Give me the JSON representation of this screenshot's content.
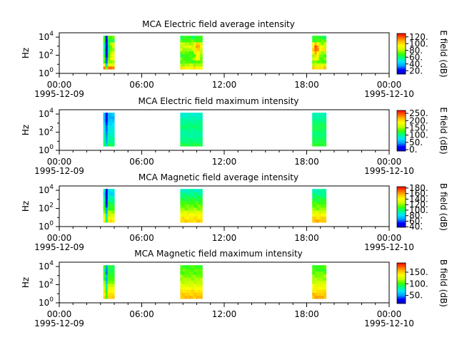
{
  "figure": {
    "width": 640,
    "height": 480,
    "background": "#ffffff",
    "colormap": [
      "#0000c8",
      "#0000ff",
      "#00a0ff",
      "#00e5ff",
      "#00ff80",
      "#40ff00",
      "#c8ff00",
      "#ffff00",
      "#ffc000",
      "#ff6000",
      "#ff0000"
    ]
  },
  "chart_data": [
    {
      "type": "heatmap",
      "title": "MCA  Electric field average intensity",
      "ylabel": "Hz",
      "y_scale": "log",
      "ylim": [
        1,
        30000
      ],
      "y_ticks": [
        {
          "exp": "0",
          "value": 1
        },
        {
          "exp": "2",
          "value": 100
        },
        {
          "exp": "4",
          "value": 10000
        }
      ],
      "xlim": [
        "1995-12-09 00:00",
        "1995-12-10 00:00"
      ],
      "x_ticks": [
        {
          "time": "00:00",
          "date": "1995-12-09",
          "hour": 0
        },
        {
          "time": "06:00",
          "date": "",
          "hour": 6
        },
        {
          "time": "12:00",
          "date": "",
          "hour": 12
        },
        {
          "time": "18:00",
          "date": "",
          "hour": 18
        },
        {
          "time": "00:00",
          "date": "1995-12-10",
          "hour": 24
        }
      ],
      "colorbar": {
        "label": "E field (dB)",
        "range": [
          10,
          130
        ],
        "ticks": [
          {
            "label": "20.",
            "value": 20
          },
          {
            "label": "40.",
            "value": 40
          },
          {
            "label": "60.",
            "value": 60
          },
          {
            "label": "80.",
            "value": 80
          },
          {
            "label": "100.",
            "value": 100
          },
          {
            "label": "120.",
            "value": 120
          }
        ]
      },
      "segments": [
        {
          "start_hour": 3.2,
          "end_hour": 4.0,
          "freq_levels": [
            115,
            90,
            75,
            70,
            65,
            60,
            55,
            55,
            60,
            65,
            70
          ],
          "hot_spot_hour": 3.8
        },
        {
          "start_hour": 8.8,
          "end_hour": 10.4,
          "freq_levels": [
            95,
            80,
            70,
            70,
            68,
            72,
            80,
            85,
            80,
            70,
            65
          ],
          "hot_spot_hour": 10.0
        },
        {
          "start_hour": 18.4,
          "end_hour": 19.4,
          "freq_levels": [
            100,
            85,
            72,
            70,
            72,
            80,
            95,
            90,
            78,
            70,
            65
          ],
          "hot_spot_hour": 18.6
        }
      ]
    },
    {
      "type": "heatmap",
      "title": "MCA  Electric field maximum intensity",
      "ylabel": "Hz",
      "y_scale": "log",
      "ylim": [
        1,
        30000
      ],
      "y_ticks": [
        {
          "exp": "0",
          "value": 1
        },
        {
          "exp": "2",
          "value": 100
        },
        {
          "exp": "4",
          "value": 10000
        }
      ],
      "xlim": [
        "1995-12-09 00:00",
        "1995-12-10 00:00"
      ],
      "x_ticks": [
        {
          "time": "00:00",
          "date": "1995-12-09",
          "hour": 0
        },
        {
          "time": "06:00",
          "date": "",
          "hour": 6
        },
        {
          "time": "12:00",
          "date": "",
          "hour": 12
        },
        {
          "time": "18:00",
          "date": "",
          "hour": 18
        },
        {
          "time": "00:00",
          "date": "1995-12-10",
          "hour": 24
        }
      ],
      "colorbar": {
        "label": "E field (dB)",
        "range": [
          -10,
          270
        ],
        "ticks": [
          {
            "label": "0.",
            "value": 0
          },
          {
            "label": "50.",
            "value": 50
          },
          {
            "label": "100.",
            "value": 100
          },
          {
            "label": "150.",
            "value": 150
          },
          {
            "label": "200.",
            "value": 200
          },
          {
            "label": "250.",
            "value": 250
          }
        ]
      },
      "segments": [
        {
          "start_hour": 3.2,
          "end_hour": 4.0,
          "freq_levels": [
            110,
            100,
            95,
            90,
            85,
            80,
            80,
            70,
            60,
            55,
            60
          ],
          "hot_spot_hour": null
        },
        {
          "start_hour": 8.8,
          "end_hour": 10.4,
          "freq_levels": [
            115,
            105,
            100,
            95,
            95,
            100,
            105,
            100,
            95,
            90,
            85
          ],
          "hot_spot_hour": null
        },
        {
          "start_hour": 18.4,
          "end_hour": 19.4,
          "freq_levels": [
            120,
            115,
            110,
            105,
            105,
            110,
            112,
            108,
            100,
            95,
            90
          ],
          "hot_spot_hour": null
        }
      ]
    },
    {
      "type": "heatmap",
      "title": "MCA  Magnetic field average intensity",
      "ylabel": "Hz",
      "y_scale": "log",
      "ylim": [
        1,
        30000
      ],
      "y_ticks": [
        {
          "exp": "0",
          "value": 1
        },
        {
          "exp": "2",
          "value": 100
        },
        {
          "exp": "4",
          "value": 10000
        }
      ],
      "xlim": [
        "1995-12-09 00:00",
        "1995-12-10 00:00"
      ],
      "x_ticks": [
        {
          "time": "00:00",
          "date": "1995-12-09",
          "hour": 0
        },
        {
          "time": "06:00",
          "date": "",
          "hour": 6
        },
        {
          "time": "12:00",
          "date": "",
          "hour": 12
        },
        {
          "time": "18:00",
          "date": "",
          "hour": 18
        },
        {
          "time": "00:00",
          "date": "1995-12-10",
          "hour": 24
        }
      ],
      "colorbar": {
        "label": "B field (dB)",
        "range": [
          38,
          185
        ],
        "ticks": [
          {
            "label": "40.",
            "value": 40
          },
          {
            "label": "60.",
            "value": 60
          },
          {
            "label": "80.",
            "value": 80
          },
          {
            "label": "100.",
            "value": 100
          },
          {
            "label": "120.",
            "value": 120
          },
          {
            "label": "140.",
            "value": 140
          },
          {
            "label": "160.",
            "value": 160
          },
          {
            "label": "180.",
            "value": 180
          }
        ]
      },
      "segments": [
        {
          "start_hour": 3.2,
          "end_hour": 4.0,
          "freq_levels": [
            145,
            140,
            130,
            120,
            110,
            105,
            100,
            95,
            88,
            80,
            85
          ],
          "hot_spot_hour": null
        },
        {
          "start_hour": 8.8,
          "end_hour": 10.4,
          "freq_levels": [
            150,
            145,
            140,
            130,
            120,
            115,
            110,
            105,
            100,
            95,
            90
          ],
          "hot_spot_hour": null
        },
        {
          "start_hour": 18.4,
          "end_hour": 19.4,
          "freq_levels": [
            155,
            150,
            140,
            130,
            120,
            115,
            110,
            105,
            100,
            95,
            92
          ],
          "hot_spot_hour": null
        }
      ]
    },
    {
      "type": "heatmap",
      "title": "MCA  Magnetic field maximum intensity",
      "ylabel": "Hz",
      "y_scale": "log",
      "ylim": [
        1,
        30000
      ],
      "y_ticks": [
        {
          "exp": "0",
          "value": 1
        },
        {
          "exp": "2",
          "value": 100
        },
        {
          "exp": "4",
          "value": 10000
        }
      ],
      "xlim": [
        "1995-12-09 00:00",
        "1995-12-10 00:00"
      ],
      "x_ticks": [
        {
          "time": "00:00",
          "date": "1995-12-09",
          "hour": 0
        },
        {
          "time": "06:00",
          "date": "",
          "hour": 6
        },
        {
          "time": "12:00",
          "date": "",
          "hour": 12
        },
        {
          "time": "18:00",
          "date": "",
          "hour": 18
        },
        {
          "time": "00:00",
          "date": "1995-12-10",
          "hour": 24
        }
      ],
      "colorbar": {
        "label": "B field (dB)",
        "range": [
          15,
          190
        ],
        "ticks": [
          {
            "label": "50.",
            "value": 50
          },
          {
            "label": "100.",
            "value": 100
          },
          {
            "label": "150.",
            "value": 150
          }
        ]
      },
      "segments": [
        {
          "start_hour": 3.2,
          "end_hour": 4.0,
          "freq_levels": [
            150,
            145,
            140,
            130,
            120,
            110,
            100,
            100,
            95,
            90,
            95
          ],
          "hot_spot_hour": null
        },
        {
          "start_hour": 8.8,
          "end_hour": 10.4,
          "freq_levels": [
            155,
            150,
            145,
            135,
            125,
            120,
            115,
            110,
            105,
            105,
            100
          ],
          "hot_spot_hour": null
        },
        {
          "start_hour": 18.4,
          "end_hour": 19.4,
          "freq_levels": [
            158,
            152,
            145,
            138,
            130,
            122,
            115,
            112,
            108,
            100,
            100
          ],
          "hot_spot_hour": null
        }
      ]
    }
  ]
}
